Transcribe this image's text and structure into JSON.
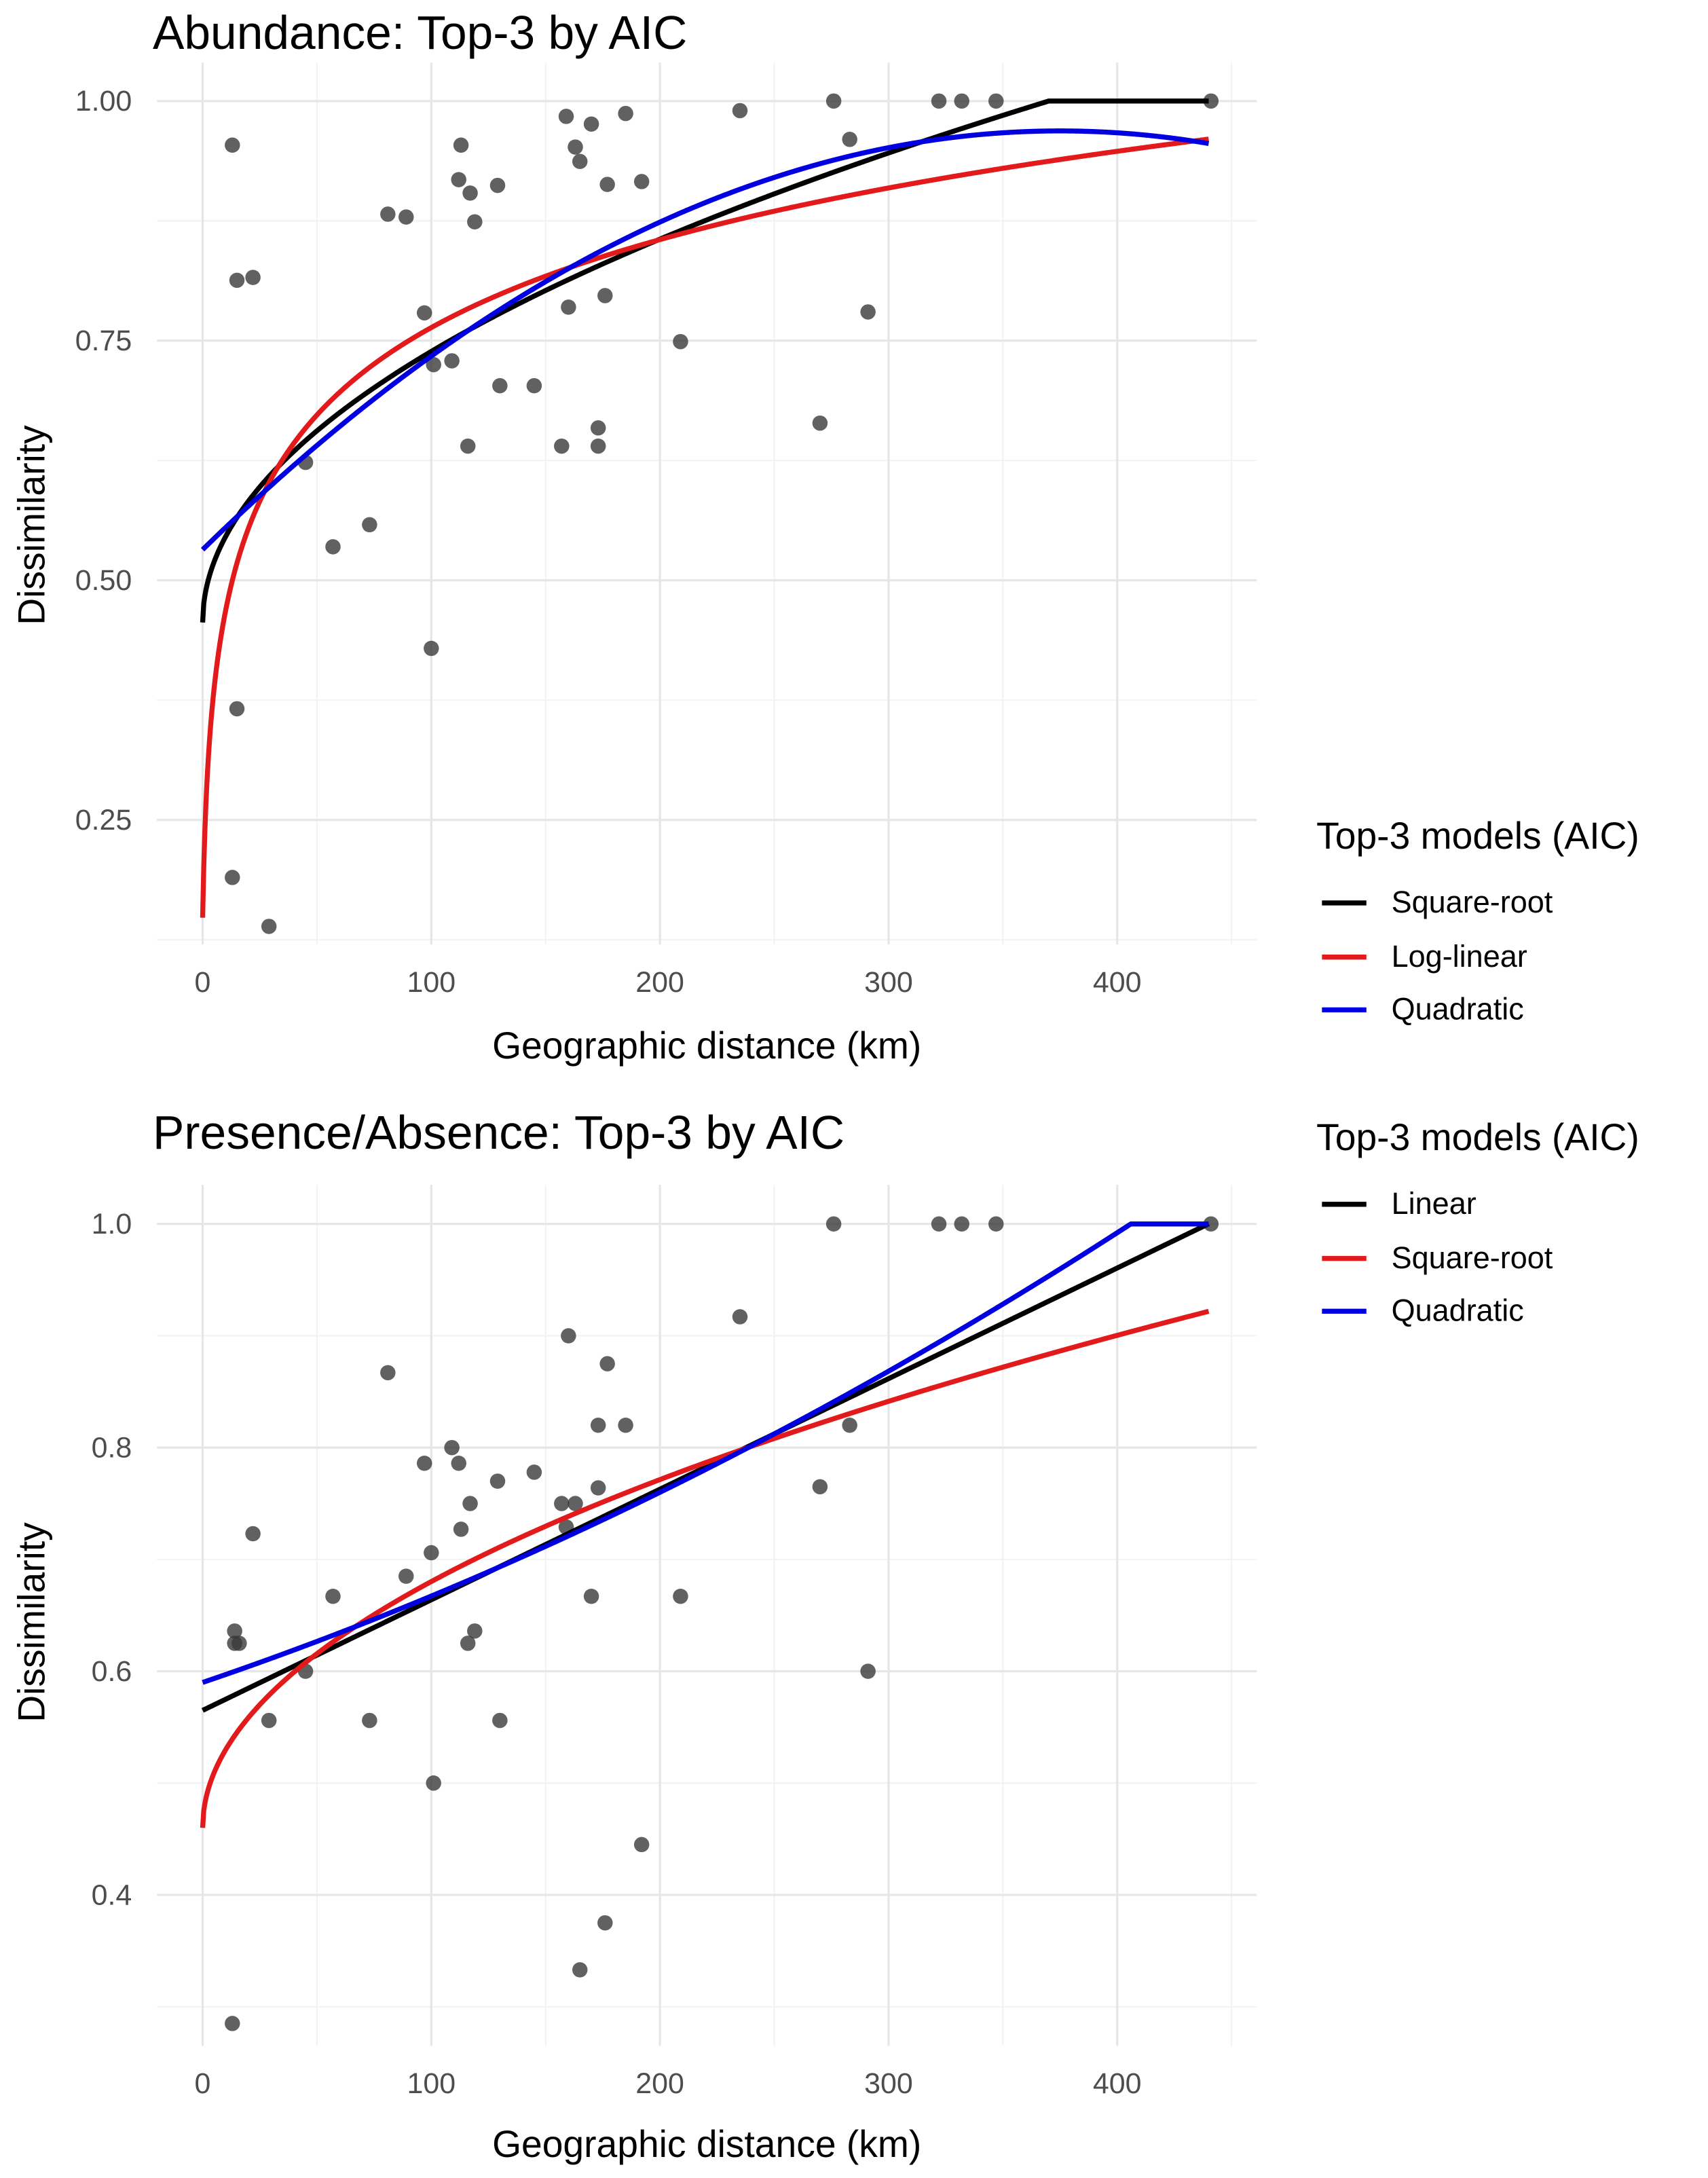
{
  "colors": {
    "black": "#000000",
    "red": "#e31a1c",
    "blue": "#0000e0",
    "points": "#3a3a3a"
  },
  "chart_data": [
    {
      "type": "scatter",
      "title": "Abundance: Top-3 by AIC",
      "xlabel": "Geographic distance (km)",
      "ylabel": "Dissimilarity",
      "xlim": [
        -20,
        461
      ],
      "ylim": [
        0.12,
        1.04
      ],
      "xticks": [
        0,
        100,
        200,
        300,
        400
      ],
      "xtick_labels": [
        "0",
        "100",
        "200",
        "300",
        "400"
      ],
      "xminor": [
        50,
        150,
        250,
        350,
        450
      ],
      "yticks": [
        0.25,
        0.5,
        0.75,
        1.0
      ],
      "ytick_labels": [
        "0.25",
        "0.50",
        "0.75",
        "1.00"
      ],
      "yminor": [
        0.125,
        0.375,
        0.625,
        0.875
      ],
      "grid": true,
      "legend": {
        "title": "Top-3 models (AIC)",
        "placement": "right",
        "entries": [
          {
            "label": "Square-root",
            "color": "black"
          },
          {
            "label": "Log-linear",
            "color": "red"
          },
          {
            "label": "Quadratic",
            "color": "blue"
          }
        ]
      },
      "points": [
        [
          13,
          0.954
        ],
        [
          15,
          0.813
        ],
        [
          22,
          0.816
        ],
        [
          15,
          0.366
        ],
        [
          13,
          0.19
        ],
        [
          29,
          0.139
        ],
        [
          45,
          0.623
        ],
        [
          57,
          0.535
        ],
        [
          73,
          0.558
        ],
        [
          81,
          0.882
        ],
        [
          89,
          0.879
        ],
        [
          97,
          0.779
        ],
        [
          100,
          0.429
        ],
        [
          101,
          0.725
        ],
        [
          109,
          0.729
        ],
        [
          112,
          0.918
        ],
        [
          113,
          0.954
        ],
        [
          117,
          0.904
        ],
        [
          119,
          0.874
        ],
        [
          116,
          0.64
        ],
        [
          129,
          0.912
        ],
        [
          130,
          0.703
        ],
        [
          145,
          0.703
        ],
        [
          157,
          0.64
        ],
        [
          159,
          0.984
        ],
        [
          160,
          0.785
        ],
        [
          163,
          0.952
        ],
        [
          165,
          0.937
        ],
        [
          170,
          0.976
        ],
        [
          173,
          0.659
        ],
        [
          173,
          0.64
        ],
        [
          177,
          0.913
        ],
        [
          176,
          0.797
        ],
        [
          185,
          0.987
        ],
        [
          192,
          0.916
        ],
        [
          209,
          0.749
        ],
        [
          235,
          0.99
        ],
        [
          270,
          0.664
        ],
        [
          276,
          1.0
        ],
        [
          283,
          0.96
        ],
        [
          291,
          0.78
        ],
        [
          322,
          1.0
        ],
        [
          332,
          1.0
        ],
        [
          347,
          1.0
        ],
        [
          441,
          1.0
        ]
      ],
      "fits": [
        {
          "name": "Square-root",
          "color": "black",
          "model": "sqrt",
          "a": 0.456,
          "b": 0.02828,
          "cap": 1.0
        },
        {
          "name": "Log-linear",
          "color": "red",
          "model": "log",
          "a": 0.148,
          "b": 0.1334
        },
        {
          "name": "Quadratic",
          "color": "blue",
          "model": "quad",
          "a": 0.532,
          "b": 0.00233,
          "c": -3.107e-06
        }
      ],
      "xrange_fit": [
        0,
        440
      ]
    },
    {
      "type": "scatter",
      "title": "Presence/Absence: Top-3 by AIC",
      "xlabel": "Geographic distance (km)",
      "ylabel": "Dissimilarity",
      "xlim": [
        -20,
        461
      ],
      "ylim": [
        0.265,
        1.035
      ],
      "xticks": [
        0,
        100,
        200,
        300,
        400
      ],
      "xtick_labels": [
        "0",
        "100",
        "200",
        "300",
        "400"
      ],
      "xminor": [
        50,
        150,
        250,
        350,
        450
      ],
      "yticks": [
        0.4,
        0.6,
        0.8,
        1.0
      ],
      "ytick_labels": [
        "0.4",
        "0.6",
        "0.8",
        "1.0"
      ],
      "yminor": [
        0.3,
        0.5,
        0.7,
        0.9
      ],
      "grid": true,
      "legend": {
        "title": "Top-3 models (AIC)",
        "placement": "top-right",
        "entries": [
          {
            "label": "Linear",
            "color": "black"
          },
          {
            "label": "Square-root",
            "color": "red"
          },
          {
            "label": "Quadratic",
            "color": "blue"
          }
        ]
      },
      "points": [
        [
          13,
          0.285
        ],
        [
          14,
          0.636
        ],
        [
          14,
          0.625
        ],
        [
          16,
          0.625
        ],
        [
          22,
          0.723
        ],
        [
          29,
          0.556
        ],
        [
          45,
          0.6
        ],
        [
          57,
          0.667
        ],
        [
          73,
          0.556
        ],
        [
          81,
          0.867
        ],
        [
          89,
          0.685
        ],
        [
          97,
          0.786
        ],
        [
          100,
          0.706
        ],
        [
          101,
          0.5
        ],
        [
          109,
          0.8
        ],
        [
          112,
          0.786
        ],
        [
          113,
          0.727
        ],
        [
          117,
          0.75
        ],
        [
          116,
          0.625
        ],
        [
          119,
          0.636
        ],
        [
          129,
          0.77
        ],
        [
          130,
          0.556
        ],
        [
          145,
          0.778
        ],
        [
          157,
          0.75
        ],
        [
          159,
          0.729
        ],
        [
          160,
          0.9
        ],
        [
          163,
          0.75
        ],
        [
          165,
          0.333
        ],
        [
          170,
          0.667
        ],
        [
          173,
          0.82
        ],
        [
          173,
          0.764
        ],
        [
          177,
          0.875
        ],
        [
          176,
          0.375
        ],
        [
          185,
          0.82
        ],
        [
          192,
          0.445
        ],
        [
          209,
          0.667
        ],
        [
          235,
          0.917
        ],
        [
          270,
          0.765
        ],
        [
          276,
          1.0
        ],
        [
          283,
          0.82
        ],
        [
          291,
          0.6
        ],
        [
          322,
          1.0
        ],
        [
          332,
          1.0
        ],
        [
          347,
          1.0
        ],
        [
          441,
          1.0
        ]
      ],
      "fits": [
        {
          "name": "Linear",
          "color": "black",
          "model": "linear",
          "a": 0.565,
          "b": 0.000989
        },
        {
          "name": "Square-root",
          "color": "red",
          "model": "sqrt",
          "a": 0.46,
          "b": 0.02202
        },
        {
          "name": "Quadratic",
          "color": "blue",
          "model": "quad",
          "a": 0.59,
          "b": 0.000695,
          "c": 7.76e-07,
          "cap": 1.0
        }
      ],
      "xrange_fit": [
        0,
        440
      ]
    }
  ]
}
